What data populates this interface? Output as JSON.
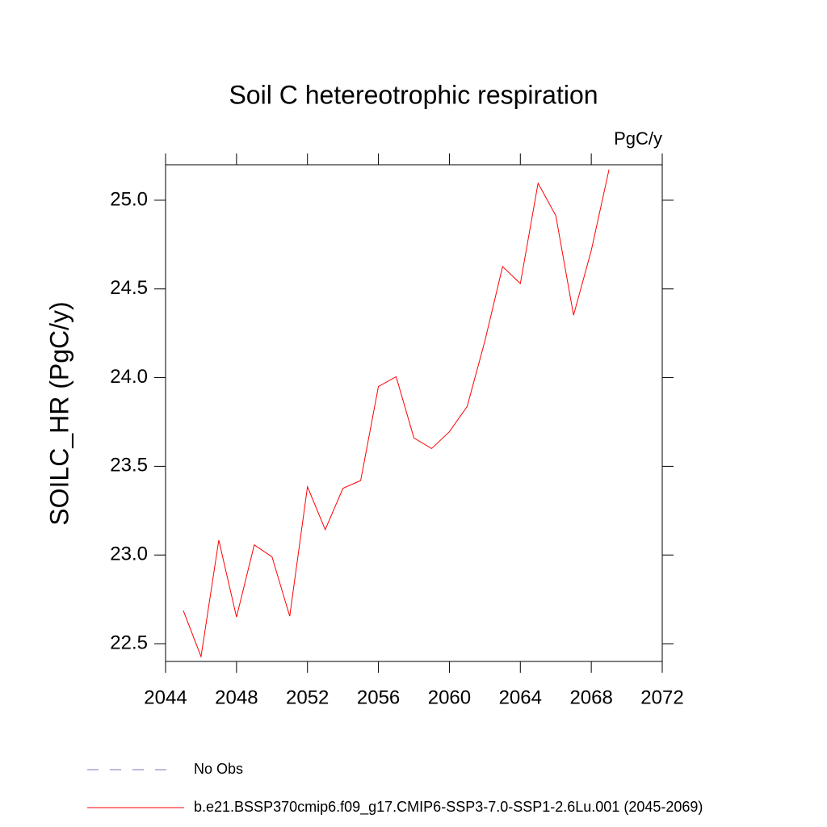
{
  "chart_data": {
    "type": "line",
    "title": "Soil C hetereotrophic respiration",
    "units": "PgC/y",
    "y_label": "SOILC_HR  (PgC/y)",
    "x": [
      2045,
      2046,
      2047,
      2048,
      2049,
      2050,
      2051,
      2052,
      2053,
      2054,
      2055,
      2056,
      2057,
      2058,
      2059,
      2060,
      2061,
      2062,
      2063,
      2064,
      2065,
      2066,
      2067,
      2068,
      2069
    ],
    "series": [
      {
        "name": "b.e21.BSSP370cmip6.f09_g17.CMIP6-SSP3-7.0-SSP1-2.6Lu.001 (2045-2069)",
        "color": "#ff0000",
        "values": [
          22.687,
          22.427,
          23.084,
          22.65,
          23.057,
          22.99,
          22.655,
          23.385,
          23.143,
          23.376,
          23.42,
          23.95,
          24.005,
          23.66,
          23.6,
          23.695,
          23.837,
          24.206,
          24.626,
          24.53,
          25.096,
          24.913,
          24.352,
          24.717,
          25.173
        ]
      }
    ],
    "reference": {
      "name": "No Obs",
      "color": "#8070c0",
      "dashed": true
    },
    "xlim": [
      2044,
      2072
    ],
    "xticks": [
      2044,
      2048,
      2052,
      2056,
      2060,
      2064,
      2068,
      2072
    ],
    "ylim": [
      22.4,
      25.2
    ],
    "yticks": [
      22.5,
      {
        "value": 23,
        "label": "23.0"
      },
      23.5,
      {
        "value": 24,
        "label": "24.0"
      },
      24.5,
      {
        "value": 25,
        "label": "25.0"
      }
    ]
  }
}
